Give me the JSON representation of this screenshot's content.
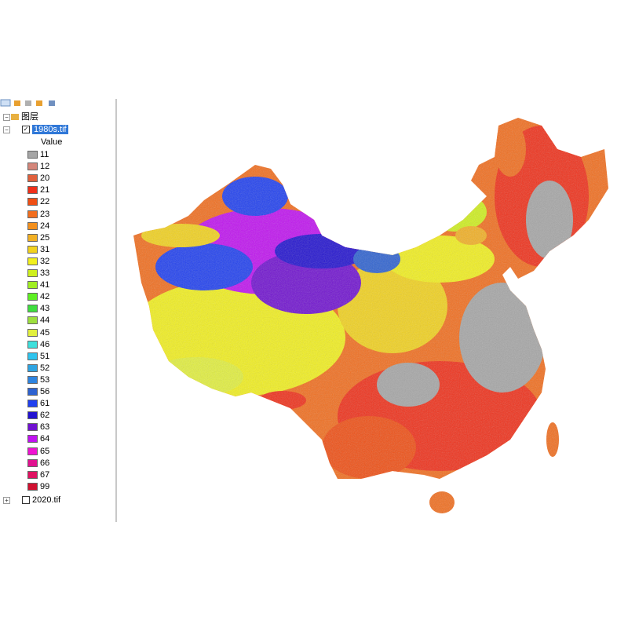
{
  "toc": {
    "group_label": "图层",
    "layers": [
      {
        "name": "1980s.tif",
        "checked": true,
        "expanded": true,
        "selected": true,
        "field": "Value",
        "legend": [
          {
            "value": 11,
            "color": "#a6a6a6"
          },
          {
            "value": 12,
            "color": "#d4867a"
          },
          {
            "value": 20,
            "color": "#e0603c"
          },
          {
            "value": 21,
            "color": "#f0301a"
          },
          {
            "value": 22,
            "color": "#f04f14"
          },
          {
            "value": 23,
            "color": "#f26e1e"
          },
          {
            "value": 24,
            "color": "#f3901e"
          },
          {
            "value": 25,
            "color": "#f2b024"
          },
          {
            "value": 31,
            "color": "#f2d21e"
          },
          {
            "value": 32,
            "color": "#f2f01e"
          },
          {
            "value": 33,
            "color": "#cff01e"
          },
          {
            "value": 41,
            "color": "#a0ee22"
          },
          {
            "value": 42,
            "color": "#5ef022"
          },
          {
            "value": 43,
            "color": "#3ede3e"
          },
          {
            "value": 44,
            "color": "#9ee03e"
          },
          {
            "value": 45,
            "color": "#e2f03e"
          },
          {
            "value": 46,
            "color": "#3ee0dc"
          },
          {
            "value": 51,
            "color": "#2ec4ee"
          },
          {
            "value": 52,
            "color": "#2ea4e2"
          },
          {
            "value": 53,
            "color": "#2e84e0"
          },
          {
            "value": 56,
            "color": "#2e62d0"
          },
          {
            "value": 61,
            "color": "#2040f0"
          },
          {
            "value": 62,
            "color": "#2212d0"
          },
          {
            "value": 63,
            "color": "#7012d0"
          },
          {
            "value": 64,
            "color": "#c012f0"
          },
          {
            "value": 65,
            "color": "#f012d2"
          },
          {
            "value": 66,
            "color": "#e01290"
          },
          {
            "value": 67,
            "color": "#e01262"
          },
          {
            "value": 99,
            "color": "#d01030"
          }
        ]
      },
      {
        "name": "2020.tif",
        "checked": false,
        "expanded": false,
        "selected": false
      }
    ]
  }
}
